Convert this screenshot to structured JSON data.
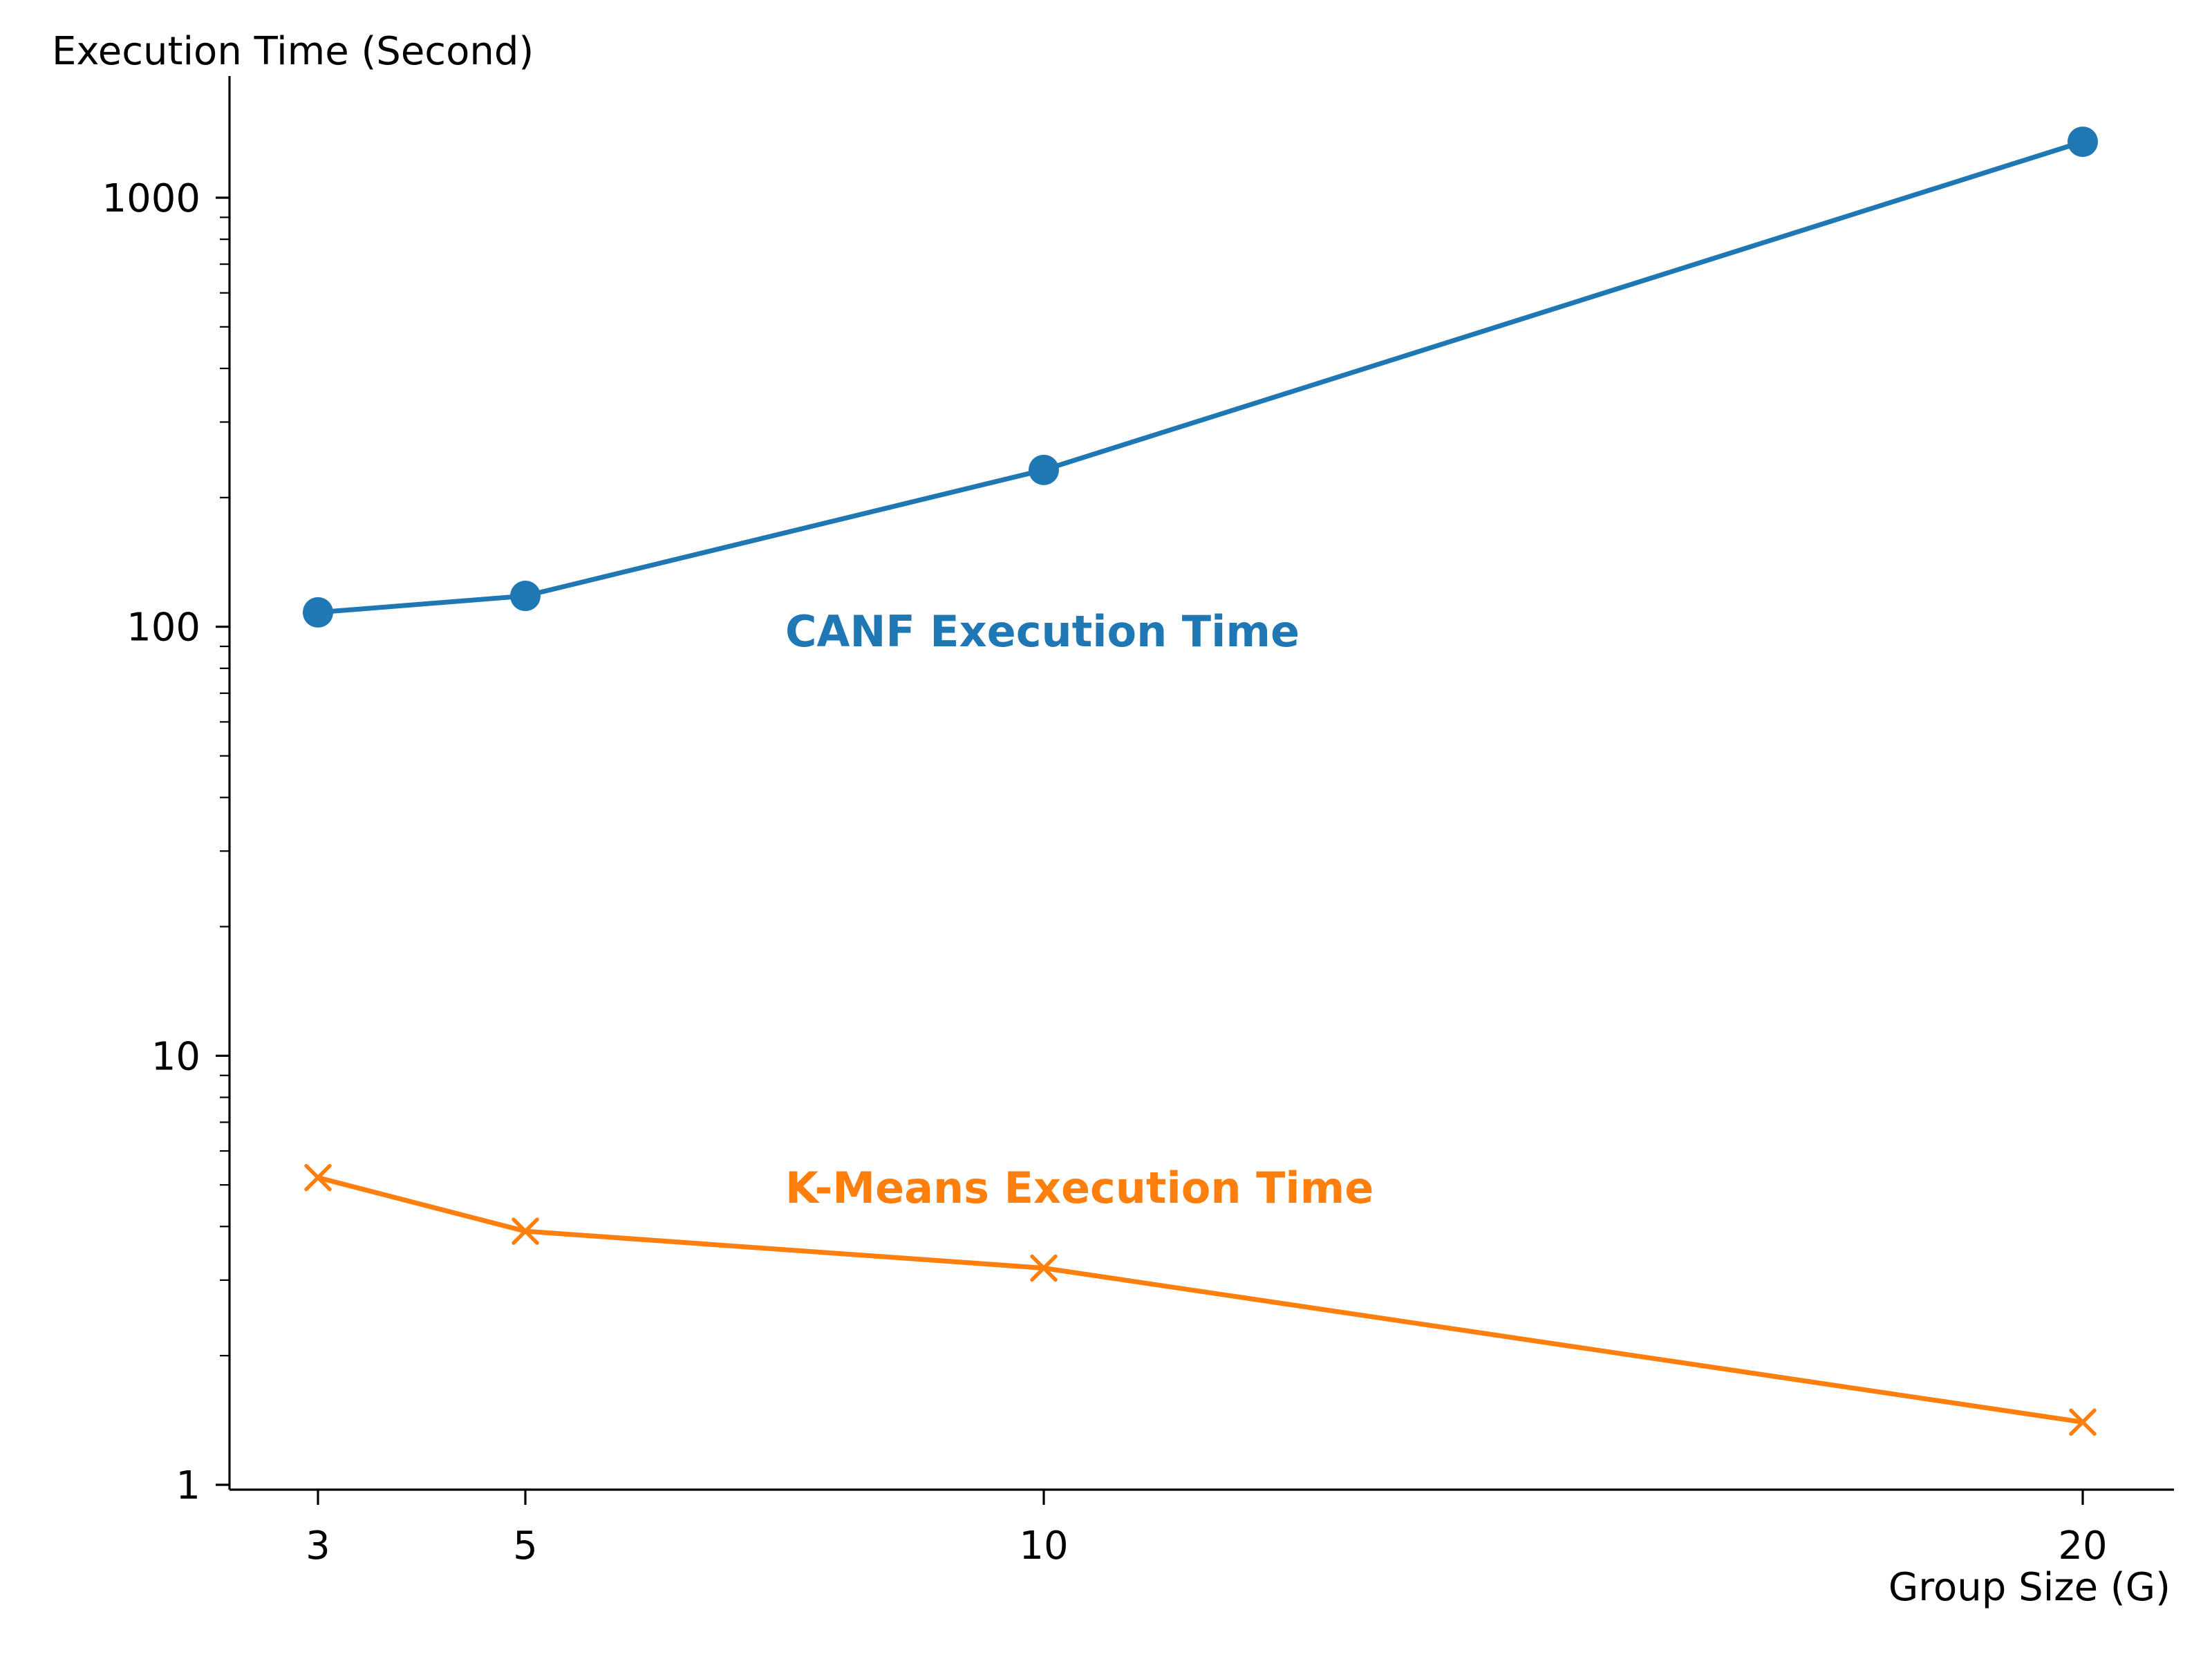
{
  "chart_data": {
    "type": "line",
    "title": "",
    "xlabel": "Group Size (G)",
    "ylabel": "Execution Time (Second)",
    "x": [
      3,
      5,
      10,
      20
    ],
    "xticks": [
      "3",
      "5",
      "10",
      "20"
    ],
    "yscale": "log",
    "ylim": [
      1,
      1800
    ],
    "yticks": [
      "1",
      "10",
      "100",
      "1000"
    ],
    "grid": false,
    "legend": "none",
    "series": [
      {
        "name": "CANF Execution Time",
        "values": [
          108,
          118,
          232,
          1350
        ],
        "color": "#1f77b4",
        "marker": "circle"
      },
      {
        "name": "K-Means Execution Time",
        "values": [
          5.2,
          3.9,
          3.2,
          1.4
        ],
        "color": "#ff7f0e",
        "marker": "x"
      }
    ]
  }
}
